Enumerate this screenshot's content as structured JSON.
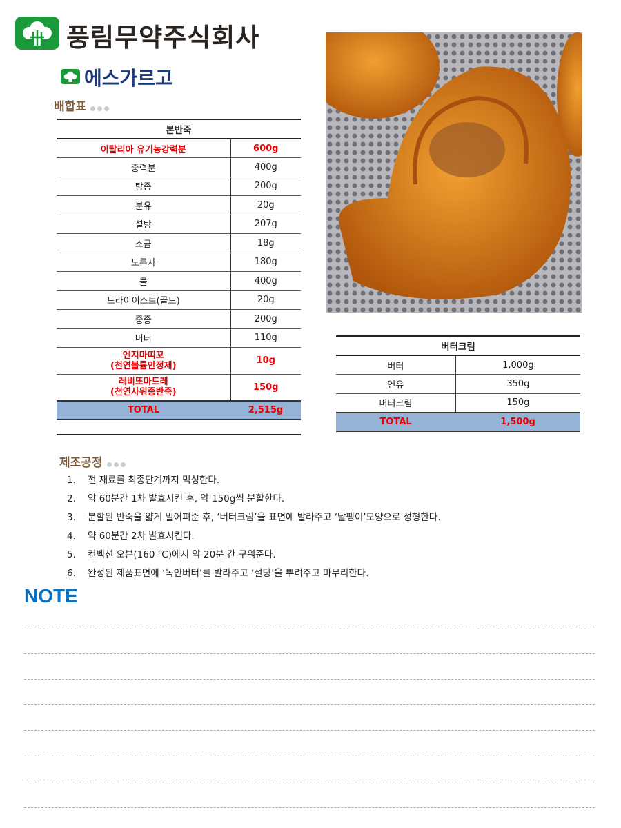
{
  "header": {
    "company": "풍림무약주식회사",
    "product": "에스가르고"
  },
  "sections": {
    "recipe": "배합표",
    "process": "제조공정",
    "note": "NOTE"
  },
  "main_table": {
    "title": "본반죽",
    "rows": [
      {
        "name": "이탈리아 유기농강력분",
        "amount": "600g",
        "highlight": true
      },
      {
        "name": "중력분",
        "amount": "400g"
      },
      {
        "name": "탕종",
        "amount": "200g"
      },
      {
        "name": "분유",
        "amount": "20g"
      },
      {
        "name": "설탕",
        "amount": "207g"
      },
      {
        "name": "소금",
        "amount": "18g"
      },
      {
        "name": "노른자",
        "amount": "180g"
      },
      {
        "name": "물",
        "amount": "400g"
      },
      {
        "name": "드라이이스트(골드)",
        "amount": "20g"
      },
      {
        "name": "중종",
        "amount": "200g"
      },
      {
        "name": "버터",
        "amount": "110g"
      },
      {
        "name": "엔지마띠꼬",
        "sub": "(천연볼륨안정제)",
        "amount": "10g",
        "highlight": true
      },
      {
        "name": "레비또마드레",
        "sub": "(천연사워종반죽)",
        "amount": "150g",
        "highlight": true
      }
    ],
    "total_label": "TOTAL",
    "total": "2,515g"
  },
  "cream_table": {
    "title": "버터크림",
    "rows": [
      {
        "name": "버터",
        "amount": "1,000g"
      },
      {
        "name": "연유",
        "amount": "350g"
      },
      {
        "name": "버터크림",
        "amount": "150g"
      }
    ],
    "total_label": "TOTAL",
    "total": "1,500g"
  },
  "steps": [
    {
      "n": "1.",
      "text": "전 재료를 최종단계까지 믹싱한다."
    },
    {
      "n": "2.",
      "text": "약 60분간 1차 발효시킨 후, 약 150g씩 분할한다."
    },
    {
      "n": "3.",
      "text": "분할된 반죽을 얇게 밀어펴준 후, ‘버터크림’을 표면에 발라주고 ‘달팽이’모양으로 성형한다."
    },
    {
      "n": "4.",
      "text": "약 60분간 2차 발효시킨다."
    },
    {
      "n": "5.",
      "text": "컨벡션 오븐(160 ℃)에서 약 20분 간 구워준다."
    },
    {
      "n": "6.",
      "text": "완성된 제품표면에 ‘녹인버터’를 발라주고 ‘설탕’을 뿌려주고 마무리한다."
    }
  ],
  "colors": {
    "brand_green": "#1a9a3a",
    "title_blue": "#1d3a78",
    "total_bg": "#95b3d7",
    "highlight_red": "#e00000",
    "note_blue": "#0a70c0"
  }
}
